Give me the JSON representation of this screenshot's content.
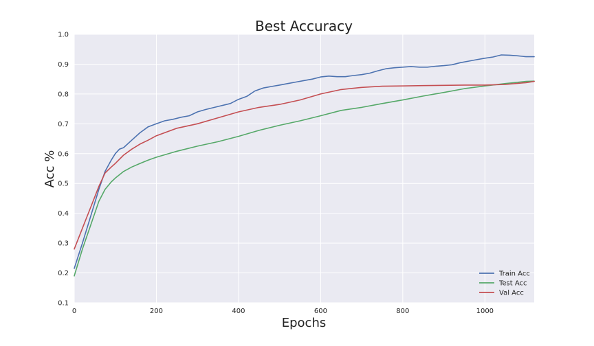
{
  "chart_data": {
    "type": "line",
    "title": "Best Accuracy",
    "xlabel": "Epochs",
    "ylabel": "Acc %",
    "xlim": [
      0,
      1120
    ],
    "ylim": [
      0.1,
      1.0
    ],
    "x_ticks": [
      0,
      200,
      400,
      600,
      800,
      1000
    ],
    "y_ticks": [
      0.1,
      0.2,
      0.3,
      0.4,
      0.5,
      0.6,
      0.7,
      0.8,
      0.9,
      1.0
    ],
    "x_tick_labels": [
      "0",
      "200",
      "400",
      "600",
      "800",
      "1000"
    ],
    "y_tick_labels": [
      "0.1",
      "0.2",
      "0.3",
      "0.4",
      "0.5",
      "0.6",
      "0.7",
      "0.8",
      "0.9",
      "1.0"
    ],
    "grid": true,
    "legend_position": "bottom-right",
    "series": [
      {
        "name": "Train Acc",
        "color": "#4c72b0",
        "x": [
          0,
          20,
          40,
          60,
          75,
          90,
          100,
          110,
          120,
          140,
          160,
          180,
          200,
          220,
          240,
          260,
          280,
          300,
          320,
          350,
          380,
          400,
          420,
          440,
          460,
          480,
          500,
          520,
          540,
          560,
          580,
          600,
          620,
          640,
          660,
          680,
          700,
          720,
          740,
          760,
          780,
          800,
          820,
          840,
          860,
          880,
          900,
          920,
          940,
          960,
          980,
          1000,
          1020,
          1040,
          1060,
          1080,
          1100,
          1120
        ],
        "y": [
          0.215,
          0.3,
          0.39,
          0.48,
          0.54,
          0.578,
          0.6,
          0.615,
          0.62,
          0.645,
          0.67,
          0.69,
          0.7,
          0.71,
          0.715,
          0.722,
          0.727,
          0.74,
          0.748,
          0.758,
          0.768,
          0.782,
          0.792,
          0.81,
          0.82,
          0.825,
          0.83,
          0.835,
          0.84,
          0.845,
          0.85,
          0.857,
          0.86,
          0.858,
          0.858,
          0.862,
          0.865,
          0.87,
          0.878,
          0.885,
          0.888,
          0.89,
          0.892,
          0.89,
          0.89,
          0.893,
          0.895,
          0.898,
          0.905,
          0.91,
          0.915,
          0.92,
          0.924,
          0.931,
          0.93,
          0.928,
          0.925,
          0.925
        ]
      },
      {
        "name": "Test Acc",
        "color": "#55a868",
        "x": [
          0,
          20,
          40,
          60,
          75,
          90,
          100,
          120,
          140,
          160,
          180,
          200,
          250,
          300,
          350,
          400,
          450,
          500,
          550,
          600,
          650,
          700,
          750,
          800,
          850,
          900,
          950,
          1000,
          1050,
          1100,
          1120
        ],
        "y": [
          0.19,
          0.28,
          0.36,
          0.44,
          0.48,
          0.505,
          0.518,
          0.54,
          0.555,
          0.567,
          0.578,
          0.588,
          0.608,
          0.625,
          0.64,
          0.658,
          0.678,
          0.695,
          0.71,
          0.727,
          0.745,
          0.755,
          0.768,
          0.78,
          0.793,
          0.805,
          0.818,
          0.827,
          0.835,
          0.842,
          0.843
        ]
      },
      {
        "name": "Val Acc",
        "color": "#c44e52",
        "x": [
          0,
          20,
          40,
          60,
          75,
          90,
          100,
          120,
          140,
          160,
          180,
          200,
          250,
          300,
          350,
          400,
          450,
          500,
          550,
          600,
          650,
          700,
          750,
          800,
          850,
          900,
          950,
          1000,
          1050,
          1100,
          1120
        ],
        "y": [
          0.28,
          0.35,
          0.42,
          0.49,
          0.535,
          0.555,
          0.567,
          0.595,
          0.615,
          0.632,
          0.645,
          0.66,
          0.685,
          0.7,
          0.72,
          0.74,
          0.755,
          0.765,
          0.78,
          0.8,
          0.815,
          0.822,
          0.826,
          0.827,
          0.828,
          0.829,
          0.83,
          0.83,
          0.832,
          0.838,
          0.842
        ]
      }
    ]
  }
}
